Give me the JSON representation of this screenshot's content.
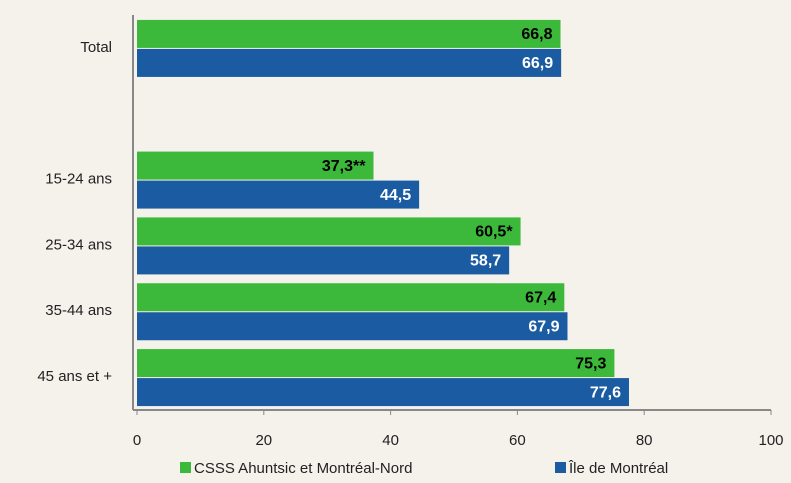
{
  "chart_data": {
    "type": "hbar",
    "categories": [
      "Total",
      null,
      "15-24 ans",
      "25-34 ans",
      "35-44 ans",
      "45 ans et +"
    ],
    "series": [
      {
        "name": "CSSS Ahuntsic et Montréal-Nord",
        "color": "#3cb93a",
        "values": [
          66.8,
          null,
          37.3,
          60.5,
          67.4,
          75.3
        ],
        "value_labels": [
          "66,8",
          null,
          "37,3**",
          "60,5*",
          "67,4",
          "75,3"
        ],
        "label_color": "#000000"
      },
      {
        "name": "Île de Montréal",
        "color": "#1a5ba1",
        "values": [
          66.9,
          null,
          44.5,
          58.7,
          67.9,
          77.6
        ],
        "value_labels": [
          "66,9",
          null,
          "44,5",
          "58,7",
          "67,9",
          "77,6"
        ],
        "label_color": "#ffffff"
      }
    ],
    "xlim": [
      0,
      100
    ],
    "xticks": [
      0,
      20,
      40,
      60,
      80,
      100
    ],
    "legend": "bottom"
  }
}
